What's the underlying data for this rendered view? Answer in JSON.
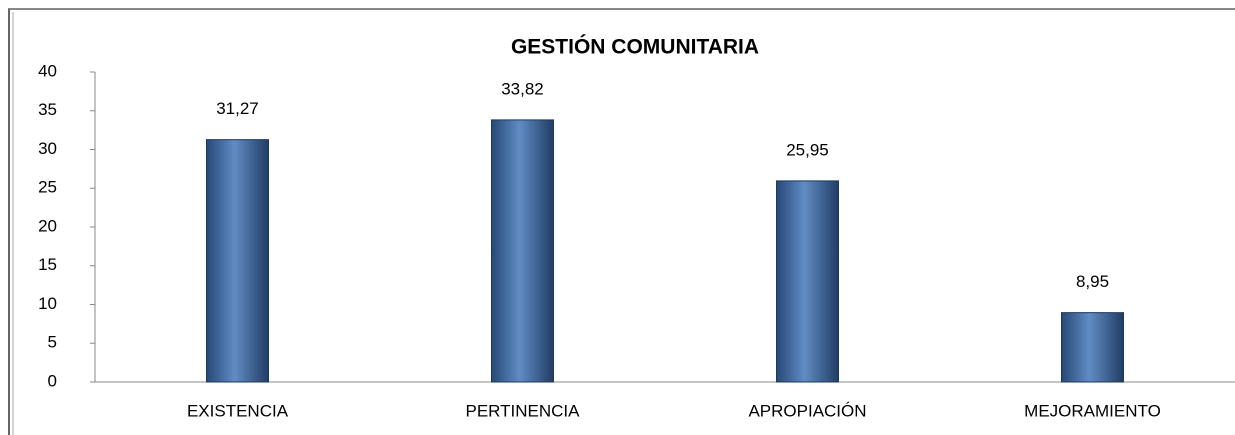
{
  "chart_data": {
    "type": "bar",
    "title": "GESTIÓN COMUNITARIA",
    "categories": [
      "EXISTENCIA",
      "PERTINENCIA",
      "APROPIACIÓN",
      "MEJORAMIENTO"
    ],
    "values": [
      31.27,
      33.82,
      25.95,
      8.95
    ],
    "value_labels": [
      "31,27",
      "33,82",
      "25,95",
      "8,95"
    ],
    "color": "#3a6fb5",
    "ylim": [
      0,
      40
    ],
    "yticks": [
      0,
      5,
      10,
      15,
      20,
      25,
      30,
      35,
      40
    ],
    "grid": false
  }
}
